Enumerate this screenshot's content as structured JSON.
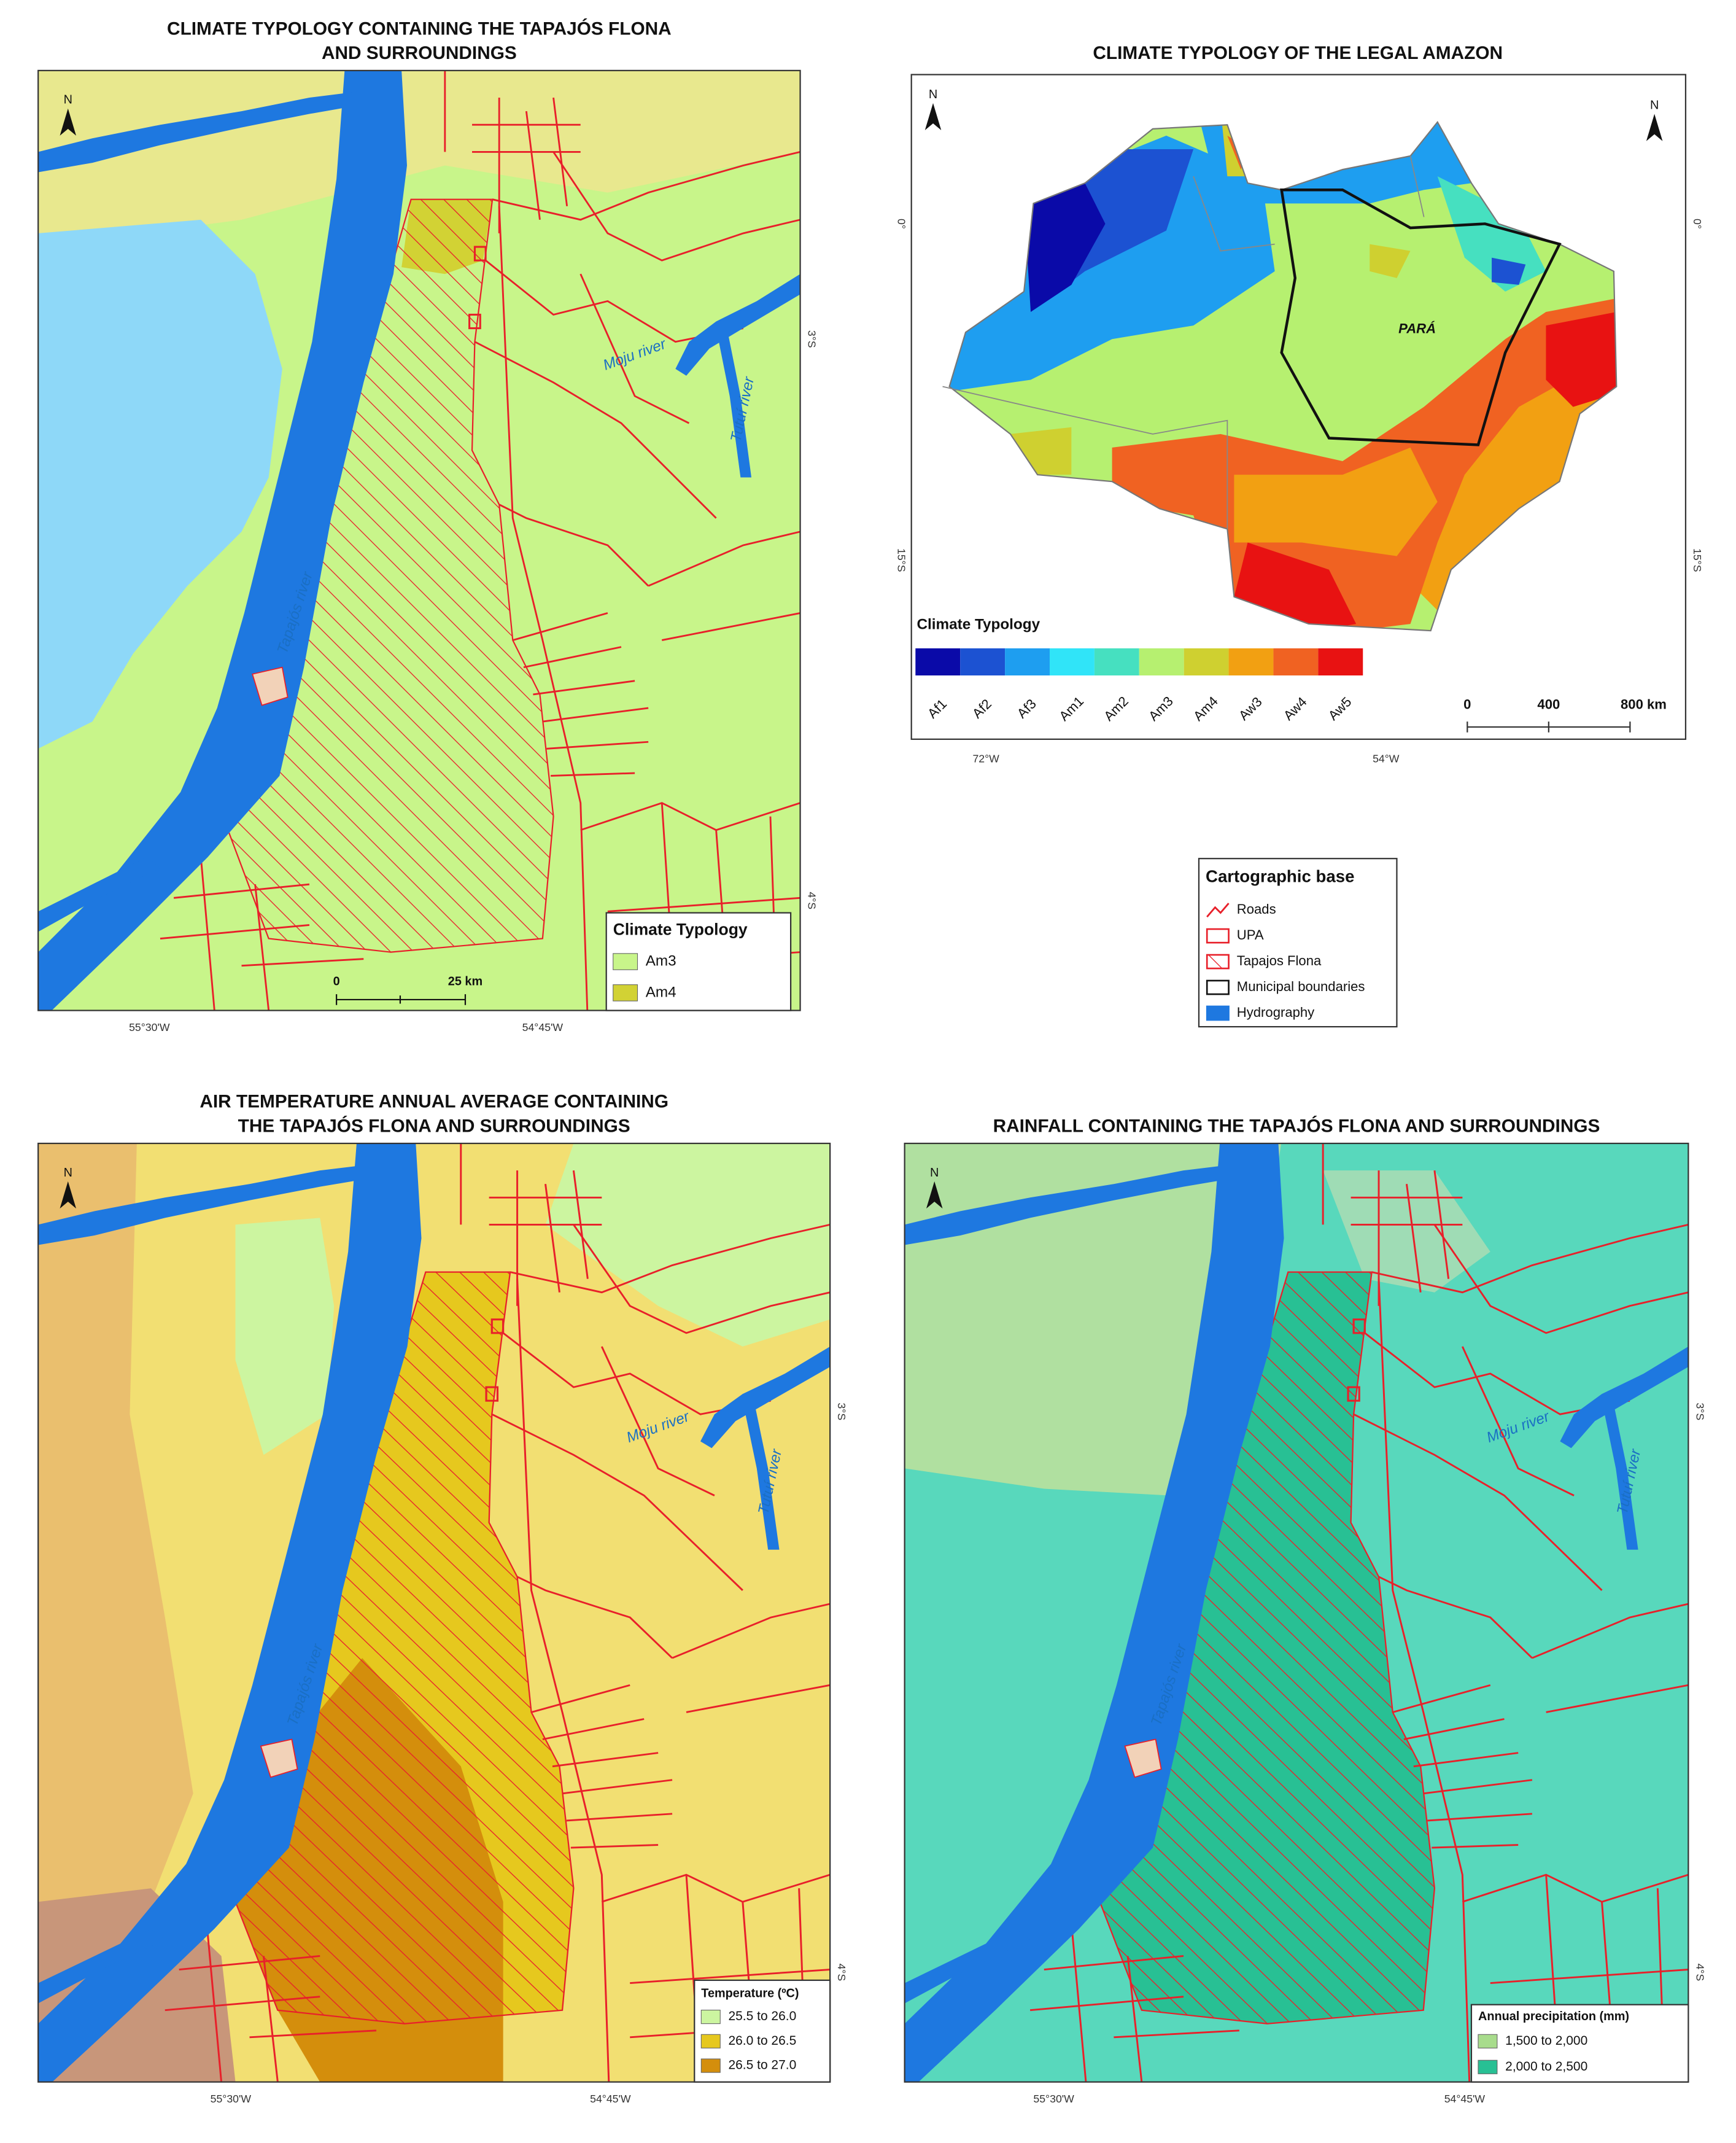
{
  "maps": [
    {
      "title_lines": [
        "CLIMATE TYPOLOGY CONTAINING THE TAPAJÓS FLONA",
        "AND SURROUNDINGS"
      ],
      "north": "N",
      "lat_labels": [
        "3°S",
        "4°S"
      ],
      "lon_labels": [
        "55°30'W",
        "54°45'W"
      ],
      "rivers": [
        "Tapajós river",
        "Moju river",
        "Tutuí river"
      ],
      "scale": [
        "0",
        "25 km"
      ],
      "legend": {
        "title": "Climate Typology",
        "items": [
          {
            "label": "Am3",
            "color": "#c8f58a"
          },
          {
            "label": "Am4",
            "color": "#d2d234"
          }
        ]
      }
    },
    {
      "title_lines": [
        "AIR TEMPERATURE ANNUAL AVERAGE CONTAINING",
        "THE TAPAJÓS FLONA AND SURROUNDINGS"
      ],
      "north": "N",
      "lat_labels": [
        "3°S",
        "4°S"
      ],
      "lon_labels": [
        "55°30'W",
        "54°45'W"
      ],
      "rivers": [
        "Tapajós river",
        "Moju river",
        "Tutuí river"
      ],
      "legend": {
        "title": "Temperature (ºC)",
        "items": [
          {
            "label": "25.5 to 26.0",
            "color": "#ccf5a0"
          },
          {
            "label": "26.0 to 26.5",
            "color": "#e6c81e"
          },
          {
            "label": "26.5 to 27.0",
            "color": "#d48e0c"
          }
        ]
      }
    },
    {
      "title_lines": [
        "RAINFALL CONTAINING THE TAPAJÓS FLONA AND SURROUNDINGS"
      ],
      "north": "N",
      "lat_labels": [
        "3°S",
        "4°S"
      ],
      "lon_labels": [
        "55°30'W",
        "54°45'W"
      ],
      "rivers": [
        "Tapajós river",
        "Moju river",
        "Tutuí river"
      ],
      "legend": {
        "title": "Annual precipitation (mm)",
        "items": [
          {
            "label": "1,500 to 2,000",
            "color": "#a8dc8c"
          },
          {
            "label": "2,000 to 2,500",
            "color": "#28c094"
          }
        ]
      }
    }
  ],
  "amazon": {
    "title": "CLIMATE TYPOLOGY OF THE LEGAL AMAZON",
    "north": "N",
    "lat_labels": [
      "0°",
      "15°S"
    ],
    "lon_labels": [
      "72°W",
      "54°W"
    ],
    "state": "PARÁ",
    "legend_title": "Climate Typology",
    "classes": [
      {
        "label": "Af1",
        "color": "#0a0aa8"
      },
      {
        "label": "Af2",
        "color": "#1c52d2"
      },
      {
        "label": "Af3",
        "color": "#1e9ef0"
      },
      {
        "label": "Am1",
        "color": "#30e4f8"
      },
      {
        "label": "Am2",
        "color": "#46e0c0"
      },
      {
        "label": "Am3",
        "color": "#b6f070"
      },
      {
        "label": "Am4",
        "color": "#cfd030"
      },
      {
        "label": "Aw3",
        "color": "#f2a012"
      },
      {
        "label": "Aw4",
        "color": "#f06222"
      },
      {
        "label": "Aw5",
        "color": "#e81212"
      }
    ],
    "scale": [
      "0",
      "400",
      "800 km"
    ]
  },
  "cartographic_base": {
    "title": "Cartographic base",
    "items": [
      "Roads",
      "UPA",
      "Tapajos Flona",
      "Municipal boundaries",
      "Hydrography"
    ]
  }
}
